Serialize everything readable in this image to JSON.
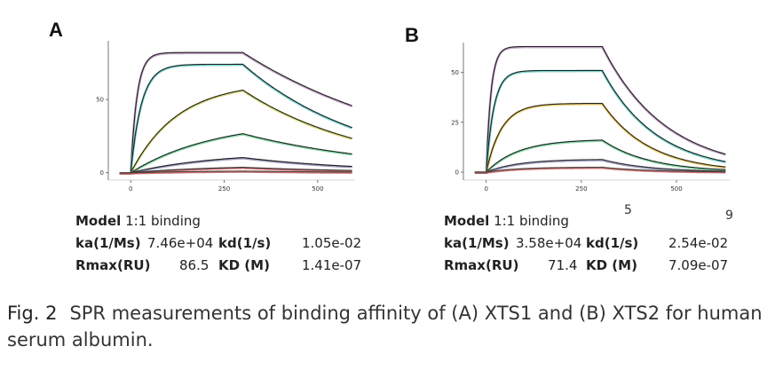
{
  "chart_data": [
    {
      "type": "line",
      "panel": "A",
      "x_ticks": [
        0,
        250,
        500
      ],
      "y_ticks": [
        0,
        50
      ],
      "xlim": [
        -60,
        600
      ],
      "ylim": [
        -5,
        90
      ],
      "association_end": 300,
      "series": [
        {
          "Rmax": 82,
          "ka": 0.06,
          "kd": 0.002,
          "fit_color": "#222222",
          "data_color": "#b38ab8"
        },
        {
          "Rmax": 74,
          "ka": 0.035,
          "kd": 0.003,
          "fit_color": "#222222",
          "data_color": "#48c4bc"
        },
        {
          "Rmax": 62,
          "ka": 0.008,
          "kd": 0.003,
          "fit_color": "#222222",
          "data_color": "#c8c84a"
        },
        {
          "Rmax": 36,
          "ka": 0.0045,
          "kd": 0.0025,
          "fit_color": "#222222",
          "data_color": "#5ccb8a"
        },
        {
          "Rmax": 14,
          "ka": 0.0045,
          "kd": 0.003,
          "fit_color": "#222222",
          "data_color": "#7a7aa6"
        },
        {
          "Rmax": 5,
          "ka": 0.0045,
          "kd": 0.003,
          "fit_color": "#333333",
          "data_color": "#c04a4a"
        },
        {
          "Rmax": 1.5,
          "ka": 0.0045,
          "kd": 0.003,
          "fit_color": "#444444",
          "data_color": "#c04a4a"
        }
      ],
      "table": {
        "model_label": "Model",
        "model_value": "1:1 binding",
        "ka_label": "ka(1/Ms)",
        "ka_value": "7.46e+04",
        "kd_label": "kd(1/s)",
        "kd_value": "1.05e-02",
        "rmax_label": "Rmax(RU)",
        "rmax_value": "86.5",
        "KD_label": "KD (M)",
        "KD_value": "1.41e-07"
      }
    },
    {
      "type": "line",
      "panel": "B",
      "x_ticks": [
        0,
        250,
        500
      ],
      "y_ticks": [
        0,
        25,
        50
      ],
      "xlim": [
        -60,
        640
      ],
      "ylim": [
        -4,
        65
      ],
      "association_end": 305,
      "series": [
        {
          "Rmax": 63,
          "ka": 0.08,
          "kd": 0.006,
          "fit_color": "#222222",
          "data_color": "#b38ab8"
        },
        {
          "Rmax": 51,
          "ka": 0.05,
          "kd": 0.007,
          "fit_color": "#222222",
          "data_color": "#48c4bc"
        },
        {
          "Rmax": 34.5,
          "ka": 0.025,
          "kd": 0.008,
          "fit_color": "#222222",
          "data_color": "#e0b830"
        },
        {
          "Rmax": 16.5,
          "ka": 0.012,
          "kd": 0.008,
          "fit_color": "#222222",
          "data_color": "#5ccb8a"
        },
        {
          "Rmax": 6.5,
          "ka": 0.012,
          "kd": 0.008,
          "fit_color": "#333333",
          "data_color": "#7a7aa6"
        },
        {
          "Rmax": 2.5,
          "ka": 0.012,
          "kd": 0.008,
          "fit_color": "#444444",
          "data_color": "#c04a4a"
        }
      ],
      "table": {
        "model_label": "Model",
        "model_value": "1:1 binding",
        "ka_label": "ka(1/Ms)",
        "ka_value": "3.58e+04",
        "kd_label": "kd(1/s)",
        "kd_value": "2.54e-02",
        "rmax_label": "Rmax(RU)",
        "rmax_value": "71.4",
        "KD_label": "KD (M)",
        "KD_value": "7.09e-07"
      }
    }
  ],
  "panels": {
    "a_letter": "A",
    "b_letter": "B",
    "b_stray_left": "5",
    "b_stray_right": "9"
  },
  "caption": {
    "label": "Fig. 2",
    "text": "SPR measurements of binding affinity of (A) XTS1 and (B) XTS2 for human serum albumin."
  }
}
